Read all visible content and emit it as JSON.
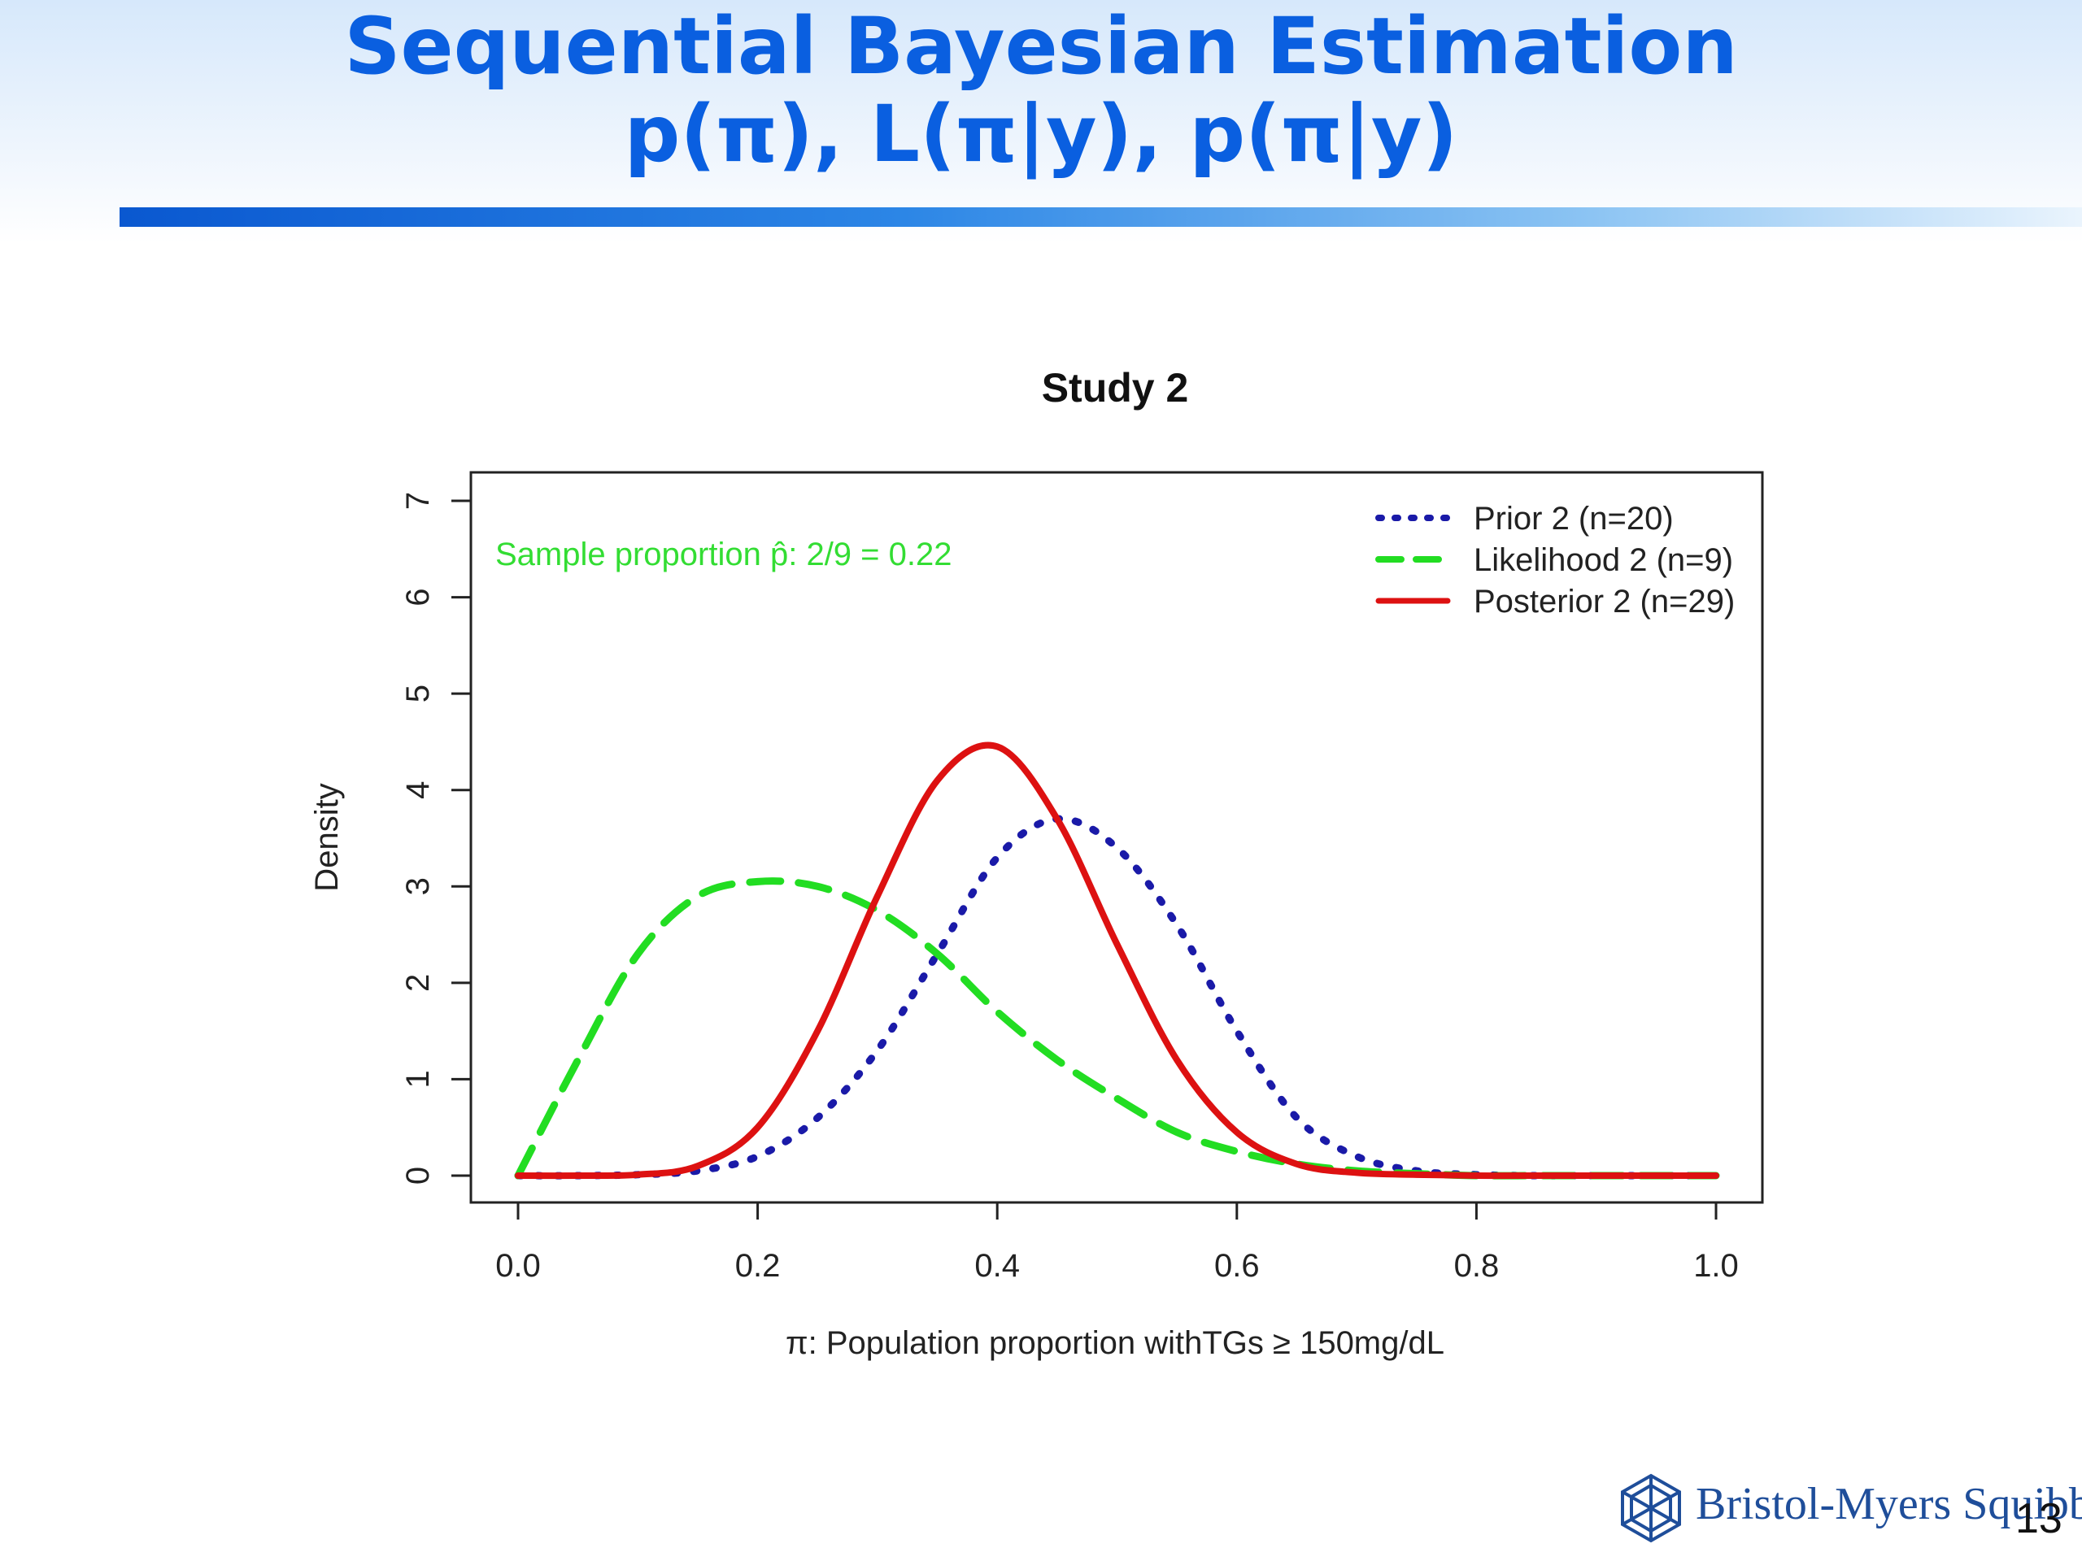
{
  "slide": {
    "title_line1": "Sequential Bayesian Estimation",
    "title_line2": "p(π), L(π|y), p(π|y)",
    "page_number": "13",
    "logo_text": "Bristol-Myers Squibb"
  },
  "colors": {
    "title": "#0a5fe0",
    "prior": "#1a1aa8",
    "likelihood": "#22dd22",
    "posterior": "#dd1111",
    "annotation": "#33dd33"
  },
  "chart_data": {
    "type": "line",
    "title": "Study 2",
    "xlabel": "π: Population proportion withTGs ≥ 150mg/dL",
    "ylabel": "Density",
    "xlim": [
      0,
      1
    ],
    "ylim": [
      0,
      7
    ],
    "xticks": [
      "0.0",
      "0.2",
      "0.4",
      "0.6",
      "0.8",
      "1.0"
    ],
    "yticks": [
      "0",
      "1",
      "2",
      "3",
      "4",
      "5",
      "6",
      "7"
    ],
    "annotation": "Sample proportion p̂: 2/9 = 0.22",
    "legend_position": "top-right",
    "grid": false,
    "x": [
      0.0,
      0.05,
      0.1,
      0.15,
      0.2,
      0.25,
      0.3,
      0.35,
      0.4,
      0.45,
      0.5,
      0.55,
      0.6,
      0.65,
      0.7,
      0.75,
      0.8,
      0.85,
      0.9,
      0.95,
      1.0
    ],
    "series": [
      {
        "name": "Prior 2 (n=20)",
        "style": "dotted",
        "values": [
          0,
          0,
          0.01,
          0.05,
          0.2,
          0.6,
          1.3,
          2.3,
          3.3,
          3.7,
          3.4,
          2.6,
          1.5,
          0.6,
          0.2,
          0.05,
          0.01,
          0,
          0,
          0,
          0
        ]
      },
      {
        "name": "Likelihood 2 (n=9)",
        "style": "dashed",
        "values": [
          0,
          1.2,
          2.3,
          2.9,
          3.05,
          3.0,
          2.75,
          2.3,
          1.7,
          1.2,
          0.8,
          0.45,
          0.25,
          0.12,
          0.05,
          0.02,
          0,
          0,
          0,
          0,
          0
        ]
      },
      {
        "name": "Posterior 2 (n=29)",
        "style": "solid",
        "values": [
          0,
          0,
          0.01,
          0.1,
          0.5,
          1.5,
          2.9,
          4.1,
          4.45,
          3.7,
          2.4,
          1.2,
          0.45,
          0.12,
          0.03,
          0.01,
          0,
          0,
          0,
          0,
          0
        ]
      }
    ]
  }
}
